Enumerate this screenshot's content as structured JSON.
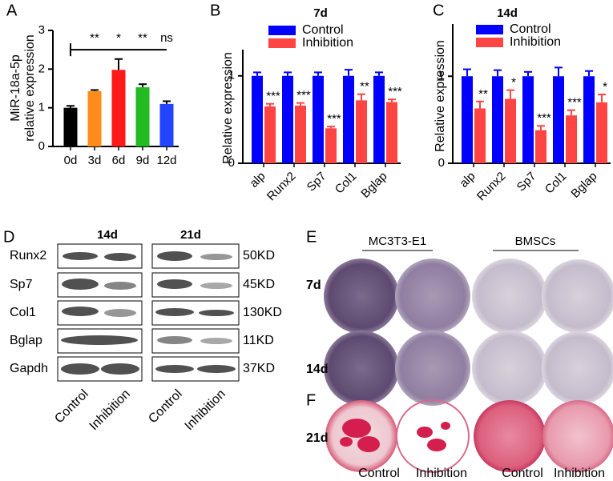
{
  "chart_data": [
    {
      "type": "bar",
      "panel": "A",
      "ylabel": [
        "MiR-18a-5p",
        "relative expression"
      ],
      "categories": [
        "0d",
        "3d",
        "6d",
        "9d",
        "12d"
      ],
      "values": [
        1.0,
        1.43,
        1.98,
        1.53,
        1.1
      ],
      "errors": [
        0.05,
        0.03,
        0.28,
        0.08,
        0.07
      ],
      "colors": [
        "#000000",
        "#ff8c1a",
        "#ff1a1a",
        "#22bb22",
        "#2244ff"
      ],
      "annotations": [
        null,
        "**",
        "*",
        "**",
        "ns"
      ],
      "ylim": [
        0,
        3
      ],
      "yticks": [
        0,
        1,
        2,
        3
      ]
    },
    {
      "type": "bar",
      "panel": "B",
      "title": "7d",
      "ylabel": "Relative expression",
      "categories": [
        "alp",
        "Runx2",
        "Sp7",
        "Col1",
        "Bglap"
      ],
      "series": [
        {
          "name": "Control",
          "color": "#0000ff",
          "values": [
            1,
            1,
            1,
            1,
            1
          ],
          "errors": [
            0.04,
            0.04,
            0.04,
            0.07,
            0.04
          ]
        },
        {
          "name": "Inhibition",
          "color": "#ff4444",
          "values": [
            0.65,
            0.66,
            0.4,
            0.72,
            0.7
          ],
          "errors": [
            0.03,
            0.03,
            0.02,
            0.07,
            0.03
          ]
        }
      ],
      "annotations": [
        "***",
        "***",
        "***",
        "**",
        "***"
      ],
      "ylim": [
        0,
        1.3
      ],
      "yticks": [
        0,
        1
      ]
    },
    {
      "type": "bar",
      "panel": "C",
      "title": "14d",
      "ylabel": "Relative expression",
      "categories": [
        "alp",
        "Runx2",
        "Sp7",
        "Col1",
        "Bglap"
      ],
      "series": [
        {
          "name": "Control",
          "color": "#0000ff",
          "values": [
            1,
            1,
            1,
            1,
            1
          ],
          "errors": [
            0.08,
            0.07,
            0.05,
            0.1,
            0.06
          ]
        },
        {
          "name": "Inhibition",
          "color": "#ff4444",
          "values": [
            0.63,
            0.74,
            0.38,
            0.55,
            0.7
          ],
          "errors": [
            0.08,
            0.1,
            0.05,
            0.06,
            0.09
          ]
        }
      ],
      "annotations": [
        "**",
        "*",
        "***",
        "***",
        "*"
      ],
      "ylim": [
        0,
        1.6
      ],
      "yticks": [
        0,
        1
      ]
    }
  ],
  "panel_d": {
    "label": "D",
    "groups": [
      "14d",
      "21d"
    ],
    "rows": [
      {
        "protein": "Runx2",
        "size": "50KD"
      },
      {
        "protein": "Sp7",
        "size": "45KD"
      },
      {
        "protein": "Col1",
        "size": "130KD"
      },
      {
        "protein": "Bglap",
        "size": "11KD"
      },
      {
        "protein": "Gapdh",
        "size": "37KD"
      }
    ],
    "columns": [
      "Control",
      "Inhibition"
    ]
  },
  "panel_e": {
    "label": "E",
    "cell_lines": [
      "MC3T3-E1",
      "BMSCs"
    ],
    "rows": [
      "7d",
      "14d"
    ]
  },
  "panel_f": {
    "label": "F",
    "rows": [
      "21d"
    ],
    "columns": [
      "Control",
      "Inhibition",
      "Control",
      "Inhibition"
    ]
  }
}
